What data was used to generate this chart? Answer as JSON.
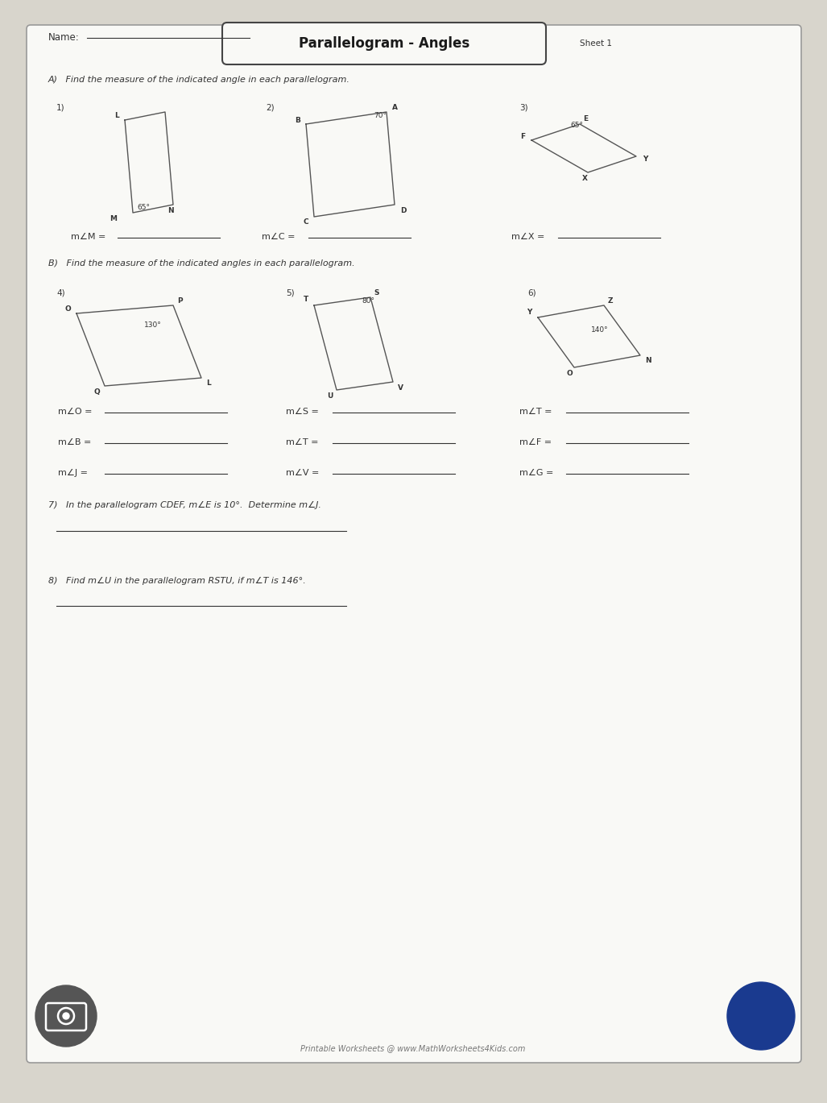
{
  "title": "Parallelogram - Angles",
  "sheet_label": "Sheet 1",
  "name_label": "Name:",
  "sec_a": "A)   Find the measure of the indicated angle in each parallelogram.",
  "sec_b": "B)   Find the measure of the indicated angles in each parallelogram.",
  "sec_7": "7)   In the parallelogram CDEF, m∠E is 10°.  Determine m∠J.",
  "sec_8": "8)   Find m∠U in the parallelogram RSTU, if m∠T is 146°.",
  "footer": "Printable Worksheets @ www.MathWorksheets4Kids.com",
  "ans_a": [
    "m∠M = ",
    "m∠C = ",
    "m∠X = "
  ],
  "ans_b_c1": [
    "m∠O = ",
    "m∠B = ",
    "m∠J = "
  ],
  "ans_b_c2": [
    "m∠S = ",
    "m∠T = ",
    "m∠V = "
  ],
  "ans_b_c3": [
    "m∠T = ",
    "m∠F = ",
    "m∠G = "
  ],
  "angle1": "65°",
  "angle2": "70°",
  "angle3": "65°",
  "angle4": "130°",
  "angle5": "80°",
  "angle6": "140°",
  "bg": "#d8d5cc",
  "paper": "#f9f9f6",
  "lc": "#333333",
  "shape_lc": "#555555"
}
